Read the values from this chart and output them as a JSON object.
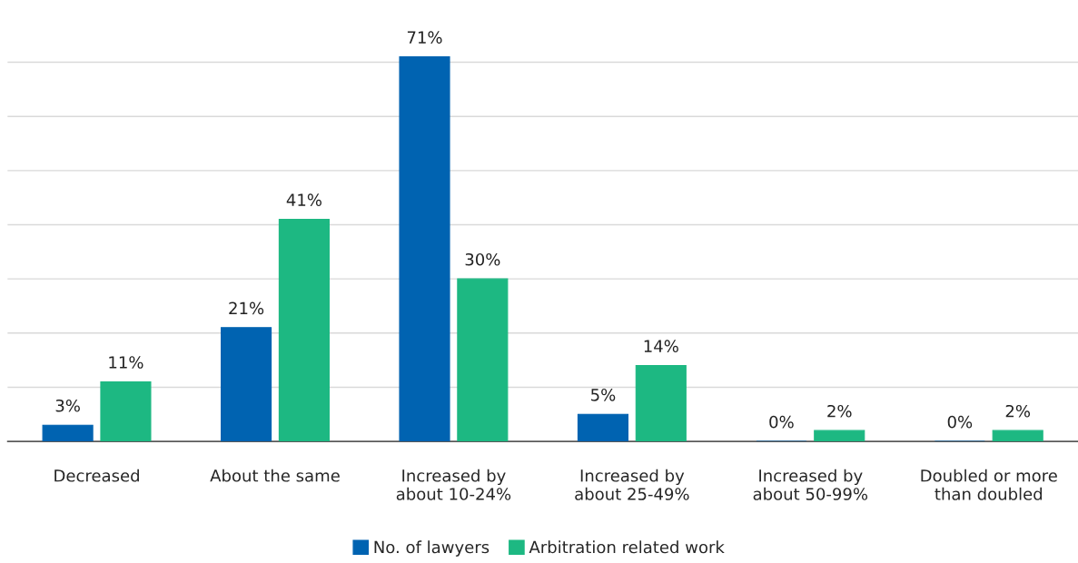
{
  "chart_data": {
    "type": "bar",
    "categories": [
      "Decreased",
      "About the same",
      "Increased by\nabout 10-24%",
      "Increased by\nabout 25-49%",
      "Increased by\nabout 50-99%",
      "Doubled or more\nthan doubled"
    ],
    "series": [
      {
        "name": "No. of lawyers",
        "color": "#0063b1",
        "values": [
          3,
          21,
          71,
          5,
          0,
          0
        ],
        "value_labels": [
          "3%",
          "21%",
          "71%",
          "5%",
          "0%",
          "0%"
        ]
      },
      {
        "name": "Arbitration related work",
        "color": "#1db882",
        "values": [
          11,
          41,
          30,
          14,
          2,
          2
        ],
        "value_labels": [
          "11%",
          "41%",
          "30%",
          "14%",
          "2%",
          "2%"
        ]
      }
    ],
    "tick_labels": "x",
    "grid": "y",
    "legend": "bottom"
  }
}
